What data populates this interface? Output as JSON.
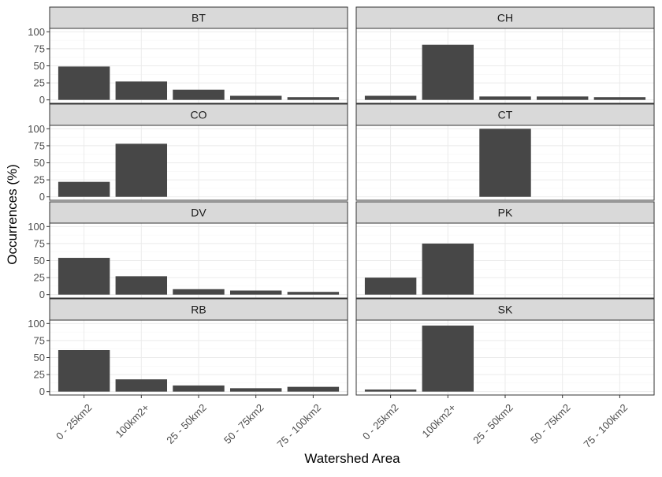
{
  "chart_data": {
    "type": "bar",
    "xlabel": "Watershed Area",
    "ylabel": "Occurrences (%)",
    "ylim": [
      0,
      100
    ],
    "yticks": [
      0,
      25,
      50,
      75,
      100
    ],
    "categories": [
      "0 - 25km2",
      "100km2+",
      "25 - 50km2",
      "50 - 75km2",
      "75 - 100km2"
    ],
    "bar_color": "#474747",
    "strip_color": "#d9d9d9",
    "facets": [
      {
        "name": "BT",
        "values": [
          49,
          27,
          15,
          6,
          4
        ]
      },
      {
        "name": "CH",
        "values": [
          6,
          81,
          5,
          5,
          4
        ]
      },
      {
        "name": "CO",
        "values": [
          22,
          78,
          null,
          null,
          null
        ]
      },
      {
        "name": "CT",
        "values": [
          null,
          null,
          100,
          null,
          null
        ]
      },
      {
        "name": "DV",
        "values": [
          54,
          27,
          8,
          6,
          4
        ]
      },
      {
        "name": "PK",
        "values": [
          25,
          75,
          null,
          null,
          null
        ]
      },
      {
        "name": "RB",
        "values": [
          61,
          18,
          9,
          5,
          7
        ]
      },
      {
        "name": "SK",
        "values": [
          3,
          97,
          null,
          null,
          null
        ]
      }
    ]
  }
}
